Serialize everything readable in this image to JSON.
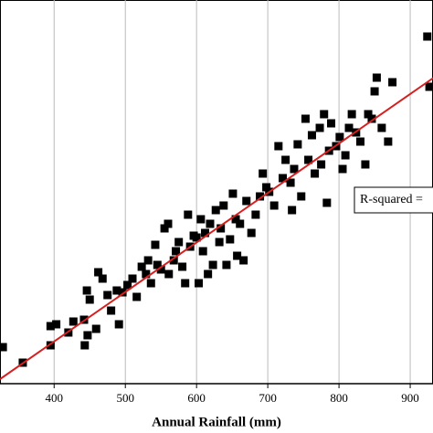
{
  "chart_data": {
    "type": "scatter",
    "x_label": "Annual Rainfall (mm)",
    "annotation": "R-squared =",
    "xlim": [
      324,
      932
    ],
    "ylim": [
      0,
      420
    ],
    "xticks": [
      400,
      500,
      600,
      700,
      800,
      900
    ],
    "grid": true,
    "color": "#000000",
    "fit": {
      "color": "#d62020",
      "x": [
        324,
        933
      ],
      "y": [
        5,
        335
      ]
    },
    "x": [
      328,
      356,
      395,
      403,
      395,
      420,
      427,
      442,
      446,
      450,
      443,
      447,
      459,
      462,
      468,
      475,
      480,
      488,
      491,
      496,
      503,
      510,
      516,
      523,
      529,
      532,
      536,
      542,
      545,
      550,
      555,
      560,
      561,
      568,
      571,
      575,
      580,
      584,
      588,
      591,
      596,
      600,
      603,
      606,
      609,
      612,
      616,
      619,
      623,
      627,
      632,
      634,
      638,
      642,
      647,
      651,
      655,
      657,
      661,
      666,
      670,
      677,
      683,
      689,
      693,
      698,
      702,
      709,
      715,
      721,
      725,
      732,
      734,
      737,
      742,
      747,
      753,
      757,
      762,
      766,
      773,
      775,
      779,
      783,
      786,
      789,
      796,
      801,
      805,
      809,
      814,
      818,
      824,
      830,
      837,
      841,
      846,
      850,
      853,
      860,
      869,
      875,
      924,
      927
    ],
    "y": [
      40,
      23,
      63,
      65,
      42,
      56,
      68,
      70,
      102,
      92,
      42,
      53,
      60,
      122,
      115,
      97,
      80,
      102,
      65,
      100,
      108,
      115,
      95,
      128,
      120,
      135,
      110,
      152,
      130,
      125,
      170,
      175,
      120,
      135,
      145,
      155,
      128,
      110,
      185,
      150,
      162,
      160,
      110,
      180,
      145,
      165,
      120,
      175,
      130,
      190,
      155,
      170,
      195,
      130,
      158,
      208,
      180,
      140,
      175,
      135,
      200,
      165,
      185,
      205,
      230,
      215,
      210,
      195,
      260,
      225,
      245,
      220,
      190,
      235,
      262,
      205,
      290,
      245,
      272,
      230,
      280,
      240,
      295,
      198,
      255,
      285,
      260,
      270,
      235,
      250,
      280,
      295,
      275,
      265,
      240,
      295,
      290,
      320,
      335,
      280,
      265,
      330,
      380,
      325
    ]
  }
}
